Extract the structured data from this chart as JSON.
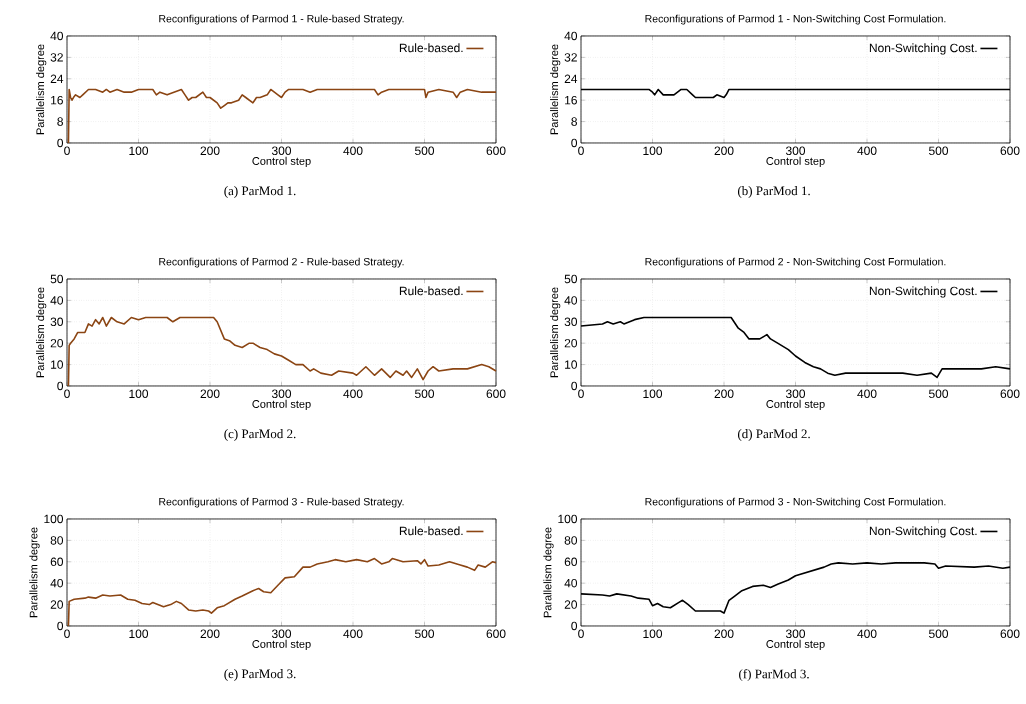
{
  "chart_data": [
    {
      "type": "line",
      "title": "Reconfigurations of Parmod 1 - Rule-based Strategy.",
      "xlabel": "Control step",
      "ylabel": "Parallelism degree",
      "annotations": [
        "(a) ParMod 1."
      ],
      "xlim": [
        0,
        600
      ],
      "ylim": [
        0,
        40
      ],
      "xticks": [
        0,
        100,
        200,
        300,
        400,
        500,
        600
      ],
      "yticks": [
        0,
        8,
        16,
        24,
        32,
        40
      ],
      "grid": true,
      "legend": "top right",
      "series": [
        {
          "name": "Rule-based.",
          "color": "#8b4513",
          "x": [
            2,
            3,
            5,
            7,
            9,
            12,
            18,
            22,
            26,
            30,
            40,
            50,
            55,
            60,
            70,
            80,
            90,
            100,
            110,
            120,
            125,
            130,
            140,
            150,
            160,
            165,
            170,
            175,
            180,
            190,
            195,
            200,
            205,
            210,
            215,
            220,
            225,
            230,
            240,
            245,
            250,
            255,
            260,
            265,
            270,
            280,
            285,
            290,
            295,
            300,
            305,
            310,
            320,
            330,
            340,
            350,
            400,
            430,
            435,
            440,
            450,
            500,
            502,
            505,
            520,
            540,
            545,
            550,
            560,
            580,
            600
          ],
          "values": [
            0,
            20,
            17,
            16,
            17,
            18,
            17,
            18,
            19,
            20,
            20,
            19,
            20,
            19,
            20,
            19,
            19,
            20,
            20,
            20,
            18,
            19,
            18,
            19,
            20,
            18,
            16,
            17,
            17,
            19,
            17,
            17,
            16,
            15,
            13,
            14,
            15,
            15,
            16,
            18,
            17,
            16,
            15,
            17,
            17,
            18,
            20,
            19,
            18,
            17,
            19,
            20,
            20,
            20,
            19,
            20,
            20,
            20,
            18,
            19,
            20,
            20,
            17,
            19,
            20,
            19,
            17,
            19,
            20,
            19,
            19
          ]
        }
      ]
    },
    {
      "type": "line",
      "title": "Reconfigurations of Parmod 1 - Non-Switching Cost Formulation.",
      "xlabel": "Control step",
      "ylabel": "Parallelism degree",
      "annotations": [
        "(b) ParMod 1."
      ],
      "xlim": [
        0,
        600
      ],
      "ylim": [
        0,
        40
      ],
      "xticks": [
        0,
        100,
        200,
        300,
        400,
        500,
        600
      ],
      "yticks": [
        0,
        8,
        16,
        24,
        32,
        40
      ],
      "grid": true,
      "legend": "top right",
      "series": [
        {
          "name": "Non-Switching Cost.",
          "color": "#000000",
          "x": [
            0,
            95,
            100,
            103,
            108,
            115,
            130,
            135,
            140,
            148,
            152,
            156,
            160,
            185,
            190,
            200,
            203,
            207,
            600
          ],
          "values": [
            20,
            20,
            19,
            18,
            20,
            18,
            18,
            19,
            20,
            20,
            19,
            18,
            17,
            17,
            18,
            17,
            18,
            20,
            20
          ]
        }
      ]
    },
    {
      "type": "line",
      "title": "Reconfigurations of Parmod 2 - Rule-based Strategy.",
      "xlabel": "Control step",
      "ylabel": "Parallelism degree",
      "annotations": [
        "(c) ParMod 2."
      ],
      "xlim": [
        0,
        600
      ],
      "ylim": [
        0,
        50
      ],
      "xticks": [
        0,
        100,
        200,
        300,
        400,
        500,
        600
      ],
      "yticks": [
        0,
        10,
        20,
        30,
        40,
        50
      ],
      "grid": true,
      "legend": "top right",
      "series": [
        {
          "name": "Rule-based.",
          "color": "#8b4513",
          "x": [
            2,
            3,
            5,
            10,
            15,
            25,
            30,
            35,
            40,
            45,
            50,
            55,
            62,
            70,
            80,
            90,
            100,
            110,
            140,
            148,
            158,
            205,
            210,
            220,
            228,
            235,
            245,
            255,
            260,
            270,
            280,
            290,
            300,
            310,
            320,
            330,
            340,
            345,
            355,
            370,
            380,
            400,
            405,
            418,
            430,
            440,
            452,
            460,
            470,
            475,
            482,
            490,
            498,
            505,
            512,
            520,
            540,
            560,
            580,
            590,
            600
          ],
          "values": [
            0,
            19,
            20,
            22,
            25,
            25,
            29,
            28,
            31,
            29,
            32,
            28,
            32,
            30,
            29,
            32,
            31,
            32,
            32,
            30,
            32,
            32,
            30,
            22,
            21,
            19,
            18,
            20,
            20,
            18,
            17,
            15,
            14,
            12,
            10,
            10,
            7,
            8,
            6,
            5,
            7,
            6,
            5,
            9,
            5,
            8,
            4,
            7,
            5,
            7,
            4,
            8,
            3,
            7,
            9,
            7,
            8,
            8,
            10,
            9,
            7
          ]
        }
      ]
    },
    {
      "type": "line",
      "title": "Reconfigurations of Parmod 2 - Non-Switching Cost Formulation.",
      "xlabel": "Control step",
      "ylabel": "Parallelism degree",
      "annotations": [
        "(d) ParMod 2."
      ],
      "xlim": [
        0,
        600
      ],
      "ylim": [
        0,
        50
      ],
      "xticks": [
        0,
        100,
        200,
        300,
        400,
        500,
        600
      ],
      "yticks": [
        0,
        10,
        20,
        30,
        40,
        50
      ],
      "grid": true,
      "legend": "top right",
      "series": [
        {
          "name": "Non-Switching Cost.",
          "color": "#000000",
          "x": [
            0,
            30,
            37,
            45,
            55,
            60,
            75,
            88,
            210,
            220,
            228,
            235,
            250,
            260,
            265,
            275,
            290,
            300,
            313,
            325,
            335,
            345,
            355,
            370,
            400,
            450,
            470,
            490,
            498,
            505,
            560,
            580,
            600
          ],
          "values": [
            28,
            29,
            30,
            29,
            30,
            29,
            31,
            32,
            32,
            27,
            25,
            22,
            22,
            24,
            22,
            20,
            17,
            14,
            11,
            9,
            8,
            6,
            5,
            6,
            6,
            6,
            5,
            6,
            4,
            8,
            8,
            9,
            8
          ]
        }
      ]
    },
    {
      "type": "line",
      "title": "Reconfigurations of Parmod 3 - Rule-based Strategy.",
      "xlabel": "Control step",
      "ylabel": "Parallelism degree",
      "annotations": [
        "(e) ParMod 3."
      ],
      "xlim": [
        0,
        600
      ],
      "ylim": [
        0,
        100
      ],
      "xticks": [
        0,
        100,
        200,
        300,
        400,
        500,
        600
      ],
      "yticks": [
        0,
        20,
        40,
        60,
        80,
        100
      ],
      "grid": true,
      "legend": "top right",
      "series": [
        {
          "name": "Rule-based.",
          "color": "#8b4513",
          "x": [
            2,
            3,
            10,
            25,
            30,
            40,
            50,
            60,
            75,
            85,
            95,
            105,
            115,
            120,
            135,
            145,
            153,
            160,
            170,
            180,
            190,
            198,
            202,
            210,
            220,
            235,
            245,
            260,
            268,
            275,
            285,
            295,
            305,
            318,
            330,
            340,
            350,
            365,
            375,
            390,
            405,
            420,
            430,
            440,
            450,
            455,
            470,
            490,
            495,
            500,
            505,
            520,
            535,
            550,
            560,
            570,
            575,
            585,
            595,
            600
          ],
          "values": [
            0,
            23,
            25,
            26,
            27,
            26,
            29,
            28,
            29,
            25,
            24,
            21,
            20,
            22,
            18,
            20,
            23,
            21,
            15,
            14,
            15,
            14,
            12,
            17,
            19,
            25,
            28,
            33,
            35,
            32,
            31,
            38,
            45,
            46,
            55,
            55,
            58,
            60,
            62,
            60,
            62,
            60,
            63,
            58,
            60,
            63,
            60,
            61,
            58,
            62,
            56,
            57,
            60,
            57,
            55,
            52,
            57,
            55,
            60,
            59
          ]
        }
      ]
    },
    {
      "type": "line",
      "title": "Reconfigurations of Parmod 3 - Non-Switching Cost Formulation.",
      "xlabel": "Control step",
      "ylabel": "Parallelism degree",
      "annotations": [
        "(f) ParMod 3."
      ],
      "xlim": [
        0,
        600
      ],
      "ylim": [
        0,
        100
      ],
      "xticks": [
        0,
        100,
        200,
        300,
        400,
        500,
        600
      ],
      "yticks": [
        0,
        20,
        40,
        60,
        80,
        100
      ],
      "grid": true,
      "legend": "top right",
      "series": [
        {
          "name": "Non-Switching Cost.",
          "color": "#000000",
          "x": [
            0,
            30,
            40,
            50,
            70,
            80,
            95,
            100,
            107,
            115,
            125,
            137,
            142,
            150,
            160,
            180,
            195,
            200,
            207,
            215,
            225,
            240,
            255,
            265,
            275,
            290,
            300,
            320,
            340,
            350,
            360,
            380,
            400,
            420,
            440,
            480,
            495,
            500,
            510,
            550,
            570,
            590,
            600
          ],
          "values": [
            30,
            29,
            28,
            30,
            28,
            26,
            25,
            19,
            21,
            18,
            17,
            22,
            24,
            20,
            14,
            14,
            14,
            12,
            24,
            28,
            33,
            37,
            38,
            36,
            39,
            43,
            47,
            51,
            55,
            58,
            59,
            58,
            59,
            58,
            59,
            59,
            58,
            54,
            56,
            55,
            56,
            54,
            55
          ]
        }
      ]
    }
  ]
}
